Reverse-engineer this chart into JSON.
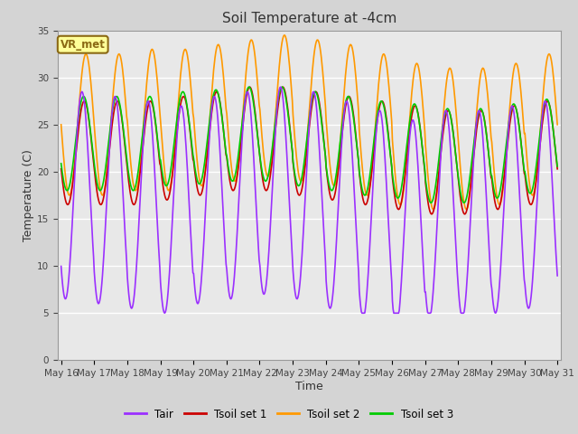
{
  "title": "Soil Temperature at -4cm",
  "xlabel": "Time",
  "ylabel": "Temperature (C)",
  "ylim": [
    0,
    35
  ],
  "yticks": [
    0,
    5,
    10,
    15,
    20,
    25,
    30,
    35
  ],
  "colors": {
    "Tair": "#9b30ff",
    "Tsoil1": "#cc0000",
    "Tsoil2": "#ff9900",
    "Tsoil3": "#00cc00"
  },
  "fig_bg": "#d4d4d4",
  "plot_bg": "#e8e8e8",
  "legend_label": "VR_met",
  "legend_box_color": "#ffff99",
  "legend_box_edge": "#8b6914",
  "xstart_day": 16,
  "xend_day": 31,
  "linewidth": 1.2,
  "grid_color": "#ffffff",
  "grid_linewidth": 1.0,
  "tick_labelsize": 7.5,
  "title_fontsize": 11,
  "axis_labelsize": 9
}
